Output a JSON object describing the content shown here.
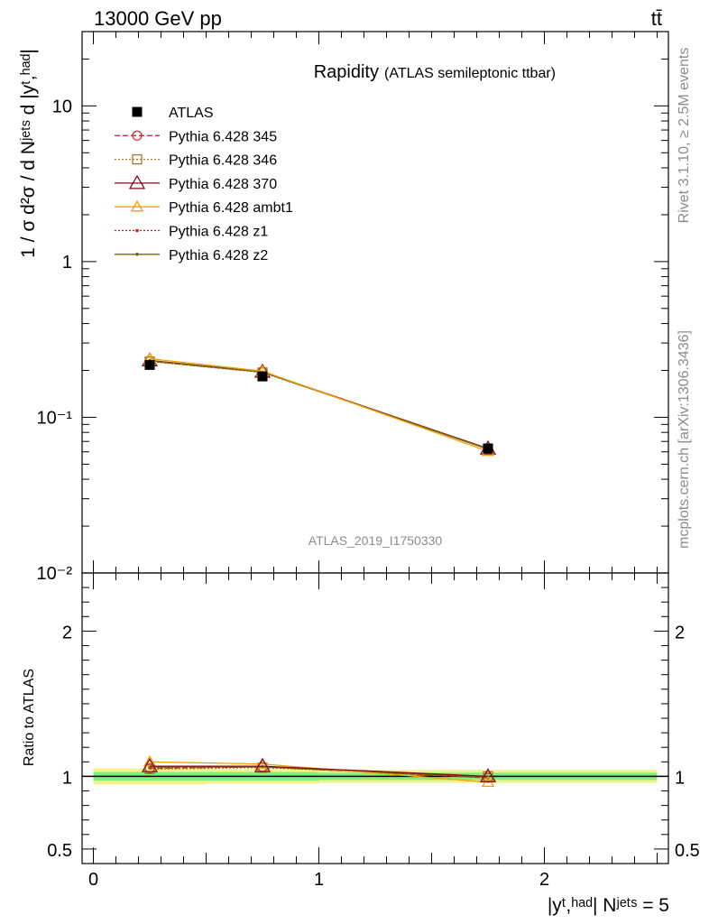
{
  "header": {
    "energy": "13000 GeV pp",
    "process": "tt̄"
  },
  "side_labels": {
    "rivet": "Rivet 3.1.10, ≥ 2.5M events",
    "mcplots": "mcplots.cern.ch [arXiv:1306.3436]"
  },
  "watermark": "ATLAS_2019_I1750330",
  "colors": {
    "atlas": "#000000",
    "p345": "#c0333f",
    "p346": "#a87a2e",
    "p370": "#8b0a1a",
    "ambt1": "#f5a000",
    "z1": "#cc1a1a",
    "z2": "#6b6b12",
    "band_inner": "#7ef07e",
    "band_outer": "#f2f28c"
  },
  "chart_data": [
    {
      "type": "line",
      "panel": "main",
      "title": "Rapidity",
      "subtitle": "(ATLAS semileptonic ttbar)",
      "ylabel": "1 / σ d²σ / d Nʲᵉᵗˢ d |yᵗ,ʰᵃᵈ|",
      "yscale": "log",
      "ylim": [
        0.01,
        30
      ],
      "xlim": [
        -0.05,
        2.55
      ],
      "y_ticks": [
        {
          "value": 10,
          "label": "10"
        },
        {
          "value": 1,
          "label": "1"
        },
        {
          "value": 0.1,
          "label": "10⁻¹"
        },
        {
          "value": 0.01,
          "label": "10⁻²"
        }
      ],
      "legend_position": "top-left",
      "x": [
        0.25,
        0.75,
        1.75
      ],
      "series": [
        {
          "name": "ATLAS",
          "key": "atlas",
          "marker": "square",
          "values": [
            0.217,
            0.183,
            0.063
          ]
        },
        {
          "name": "Pythia 6.428 345",
          "key": "p345",
          "marker": "circle",
          "dash": "6,3",
          "values": [
            0.229,
            0.195,
            0.0625
          ]
        },
        {
          "name": "Pythia 6.428 346",
          "key": "p346",
          "marker": "square-open",
          "dash": "2,2",
          "values": [
            0.228,
            0.194,
            0.063
          ]
        },
        {
          "name": "Pythia 6.428 370",
          "key": "p370",
          "marker": "triangle-big",
          "values": [
            0.232,
            0.196,
            0.063
          ]
        },
        {
          "name": "Pythia 6.428 ambt1",
          "key": "ambt1",
          "marker": "triangle",
          "values": [
            0.238,
            0.198,
            0.0605
          ]
        },
        {
          "name": "Pythia 6.428 z1",
          "key": "z1",
          "marker": "dot",
          "dash": "2,2",
          "values": [
            0.23,
            0.195,
            0.0625
          ]
        },
        {
          "name": "Pythia 6.428 z2",
          "key": "z2",
          "marker": "dot",
          "values": [
            0.231,
            0.195,
            0.0625
          ]
        }
      ]
    },
    {
      "type": "line",
      "panel": "ratio",
      "ylabel": "Ratio to ATLAS",
      "xlabel": "|yᵗ,ʰᵃᵈ| Nʲᵉᵗˢ = 5",
      "ylim": [
        0.4,
        2.4
      ],
      "xlim": [
        -0.05,
        2.55
      ],
      "y_ticks": [
        {
          "value": 2,
          "label": "2"
        },
        {
          "value": 1,
          "label": "1"
        },
        {
          "value": 0.5,
          "label": "0.5"
        }
      ],
      "x_ticks": [
        {
          "value": 0,
          "label": "0"
        },
        {
          "value": 1,
          "label": "1"
        },
        {
          "value": 2,
          "label": "2"
        }
      ],
      "band": {
        "bins": [
          [
            0,
            0.5
          ],
          [
            0.5,
            1
          ],
          [
            1,
            2.5
          ]
        ],
        "inner": [
          [
            0.97,
            1.03
          ],
          [
            0.97,
            1.03
          ],
          [
            0.975,
            1.025
          ]
        ],
        "outer": [
          [
            0.945,
            1.055
          ],
          [
            0.95,
            1.05
          ],
          [
            0.955,
            1.045
          ]
        ]
      },
      "x": [
        0.25,
        0.75,
        1.75
      ],
      "series": [
        {
          "name": "Pythia 6.428 345",
          "key": "p345",
          "marker": "circle",
          "dash": "6,3",
          "values": [
            1.055,
            1.065,
            0.99
          ]
        },
        {
          "name": "Pythia 6.428 346",
          "key": "p346",
          "marker": "square-open",
          "dash": "2,2",
          "values": [
            1.05,
            1.06,
            1.0
          ]
        },
        {
          "name": "Pythia 6.428 370",
          "key": "p370",
          "marker": "triangle-big",
          "values": [
            1.07,
            1.07,
            1.0
          ]
        },
        {
          "name": "Pythia 6.428 ambt1",
          "key": "ambt1",
          "marker": "triangle",
          "values": [
            1.1,
            1.085,
            0.96
          ]
        },
        {
          "name": "Pythia 6.428 z1",
          "key": "z1",
          "marker": "dot",
          "dash": "2,2",
          "values": [
            1.06,
            1.065,
            0.99
          ]
        },
        {
          "name": "Pythia 6.428 z2",
          "key": "z2",
          "marker": "dot",
          "values": [
            1.065,
            1.065,
            0.995
          ]
        }
      ]
    }
  ]
}
